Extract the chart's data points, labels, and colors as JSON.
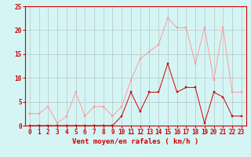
{
  "x": [
    0,
    1,
    2,
    3,
    4,
    5,
    6,
    7,
    8,
    9,
    10,
    11,
    12,
    13,
    14,
    15,
    16,
    17,
    18,
    19,
    20,
    21,
    22,
    23
  ],
  "rafales": [
    2.5,
    2.5,
    4,
    0.5,
    2,
    7,
    2,
    4,
    4,
    2,
    4,
    9.5,
    14,
    15.5,
    17,
    22.5,
    20.5,
    20.5,
    13,
    20.5,
    9.5,
    20.5,
    7,
    7
  ],
  "vent_moyen": [
    0,
    0,
    0,
    0,
    0,
    0,
    0,
    0,
    0,
    0,
    2,
    7,
    3,
    7,
    7,
    13,
    7,
    8,
    8,
    0.5,
    7,
    6,
    2,
    2
  ],
  "rafales_color": "#FF9999",
  "vent_moyen_color": "#CC0000",
  "bg_color": "#D5F5F5",
  "grid_color": "#AAAAAA",
  "xlabel": "Vent moyen/en rafales ( km/h )",
  "ylim": [
    0,
    25
  ],
  "yticks": [
    0,
    5,
    10,
    15,
    20,
    25
  ],
  "xticks": [
    0,
    1,
    2,
    3,
    4,
    5,
    6,
    7,
    8,
    9,
    10,
    11,
    12,
    13,
    14,
    15,
    16,
    17,
    18,
    19,
    20,
    21,
    22,
    23
  ],
  "label_color": "#CC0000",
  "tick_fontsize": 5.5,
  "xlabel_fontsize": 6.5,
  "marker_size": 1.8,
  "line_width": 0.7
}
